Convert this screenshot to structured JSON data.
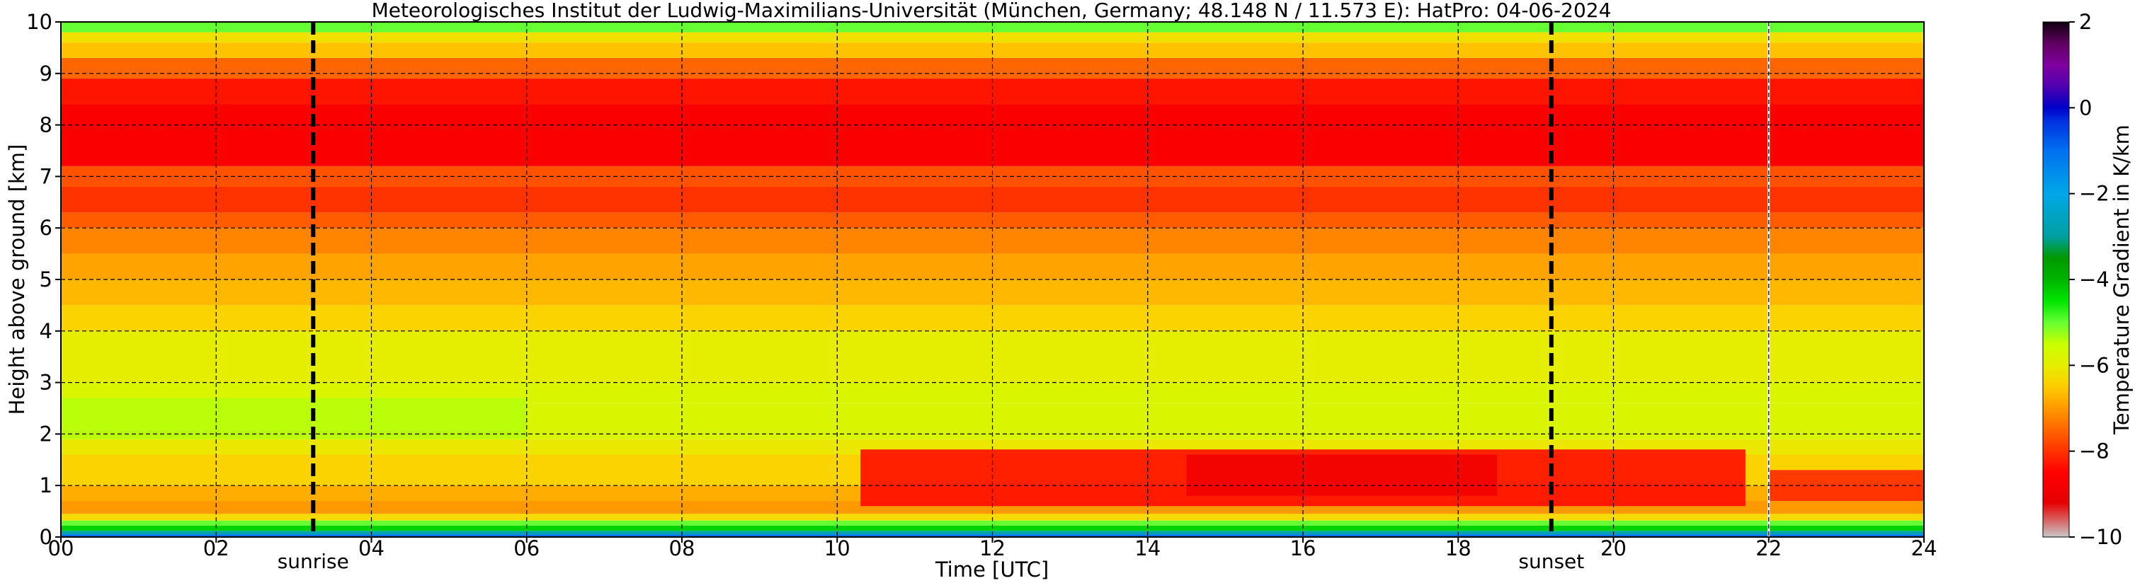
{
  "chart_data": {
    "type": "heatmap",
    "title": "Meteorologisches Institut der Ludwig-Maximilians-Universität (München, Germany; 48.148 N / 11.573 E):    HatPro: 04-06-2024",
    "xlabel": "Time [UTC]",
    "ylabel": "Height above ground [km]",
    "xlim": [
      0,
      24
    ],
    "ylim": [
      0,
      10
    ],
    "x_ticks": [
      0,
      2,
      4,
      6,
      8,
      10,
      12,
      14,
      16,
      18,
      20,
      22,
      24
    ],
    "x_tick_labels": [
      "00",
      "02",
      "04",
      "06",
      "08",
      "10",
      "12",
      "14",
      "16",
      "18",
      "20",
      "22",
      "24"
    ],
    "y_ticks": [
      0,
      1,
      2,
      3,
      4,
      5,
      6,
      7,
      8,
      9,
      10
    ],
    "y_tick_labels": [
      "0",
      "1",
      "2",
      "3",
      "4",
      "5",
      "6",
      "7",
      "8",
      "9",
      "10"
    ],
    "grid": true,
    "events": [
      {
        "label": "sunrise",
        "x": 3.25
      },
      {
        "label": "sunset",
        "x": 19.2
      }
    ],
    "data_gap_x": 22.0,
    "colorbar": {
      "label": "Temperature Gradient in K/km",
      "range": [
        -10,
        2
      ],
      "ticks": [
        2,
        0,
        -2,
        -4,
        -6,
        -8,
        -10
      ],
      "tick_labels": [
        "2",
        "0",
        "−2",
        "−4",
        "−6",
        "−8",
        "−10"
      ],
      "colors": [
        {
          "v": -10,
          "c": "#c8c8c8"
        },
        {
          "v": -9.6,
          "c": "#d86060"
        },
        {
          "v": -9.2,
          "c": "#e60000"
        },
        {
          "v": -8.5,
          "c": "#ff0000"
        },
        {
          "v": -8.0,
          "c": "#ff3300"
        },
        {
          "v": -7.5,
          "c": "#ff6600"
        },
        {
          "v": -7.0,
          "c": "#ff9900"
        },
        {
          "v": -6.5,
          "c": "#ffcc00"
        },
        {
          "v": -6.0,
          "c": "#e6ee00"
        },
        {
          "v": -5.5,
          "c": "#c8ff00"
        },
        {
          "v": -5.0,
          "c": "#66ff33"
        },
        {
          "v": -4.5,
          "c": "#00e600"
        },
        {
          "v": -4.0,
          "c": "#00b400"
        },
        {
          "v": -3.5,
          "c": "#009900"
        },
        {
          "v": -3.0,
          "c": "#00a0a0"
        },
        {
          "v": -2.0,
          "c": "#00a8e8"
        },
        {
          "v": -1.0,
          "c": "#0070f0"
        },
        {
          "v": -0.3,
          "c": "#0030e0"
        },
        {
          "v": 0.0,
          "c": "#0000c8"
        },
        {
          "v": 0.5,
          "c": "#5000b0"
        },
        {
          "v": 1.0,
          "c": "#8000a0"
        },
        {
          "v": 1.5,
          "c": "#600060"
        },
        {
          "v": 2.0,
          "c": "#100010"
        }
      ]
    },
    "profile_layers": [
      {
        "h": [
          0.0,
          0.05
        ],
        "v": -1.0
      },
      {
        "h": [
          0.05,
          0.12
        ],
        "v": -2.8
      },
      {
        "h": [
          0.12,
          0.22
        ],
        "v": -4.3
      },
      {
        "h": [
          0.22,
          0.32
        ],
        "v": -5.0
      },
      {
        "h": [
          0.32,
          0.45
        ],
        "v": -6.3
      },
      {
        "h": [
          0.45,
          0.7
        ],
        "v": -7.0
      },
      {
        "h": [
          0.7,
          1.0
        ],
        "v": -6.8
      },
      {
        "h": [
          1.0,
          1.6
        ],
        "v": -6.4
      },
      {
        "h": [
          1.6,
          1.9
        ],
        "v": -6.1
      },
      {
        "h": [
          1.9,
          2.6
        ],
        "v": -5.8
      },
      {
        "h": [
          2.6,
          3.0
        ],
        "v": -5.8
      },
      {
        "h": [
          3.0,
          4.0
        ],
        "v": -6.0
      },
      {
        "h": [
          4.0,
          4.5
        ],
        "v": -6.4
      },
      {
        "h": [
          4.5,
          5.0
        ],
        "v": -6.7
      },
      {
        "h": [
          5.0,
          5.5
        ],
        "v": -6.9
      },
      {
        "h": [
          5.5,
          6.0
        ],
        "v": -7.2
      },
      {
        "h": [
          6.0,
          6.3
        ],
        "v": -7.6
      },
      {
        "h": [
          6.3,
          6.8
        ],
        "v": -8.0
      },
      {
        "h": [
          6.8,
          7.2
        ],
        "v": -7.7
      },
      {
        "h": [
          7.2,
          8.4
        ],
        "v": -8.6
      },
      {
        "h": [
          8.4,
          8.9
        ],
        "v": -8.3
      },
      {
        "h": [
          8.9,
          9.3
        ],
        "v": -7.5
      },
      {
        "h": [
          9.3,
          9.6
        ],
        "v": -6.6
      },
      {
        "h": [
          9.6,
          9.8
        ],
        "v": -6.2
      },
      {
        "h": [
          9.8,
          10.0
        ],
        "v": -5.0
      }
    ],
    "features": [
      {
        "name": "morning green band",
        "x": [
          0.0,
          6.0
        ],
        "h": [
          1.9,
          2.7
        ],
        "v": -5.4
      },
      {
        "name": "afternoon inversion core",
        "x": [
          10.3,
          21.7
        ],
        "h": [
          0.6,
          1.7
        ],
        "v": -8.5
      },
      {
        "name": "afternoon strong core",
        "x": [
          14.5,
          18.5
        ],
        "h": [
          0.8,
          1.6
        ],
        "v": -8.9
      },
      {
        "name": "evening layer",
        "x": [
          22.0,
          24.0
        ],
        "h": [
          0.7,
          1.3
        ],
        "v": -8.2
      }
    ]
  }
}
